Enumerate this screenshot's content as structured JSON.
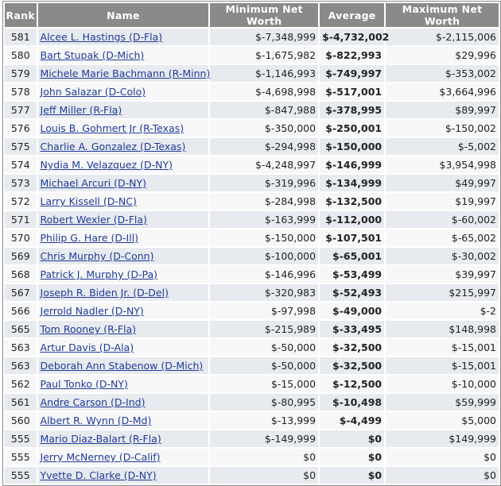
{
  "table": {
    "headers": {
      "rank": "Rank",
      "name": "Name",
      "min": "Minimum Net Worth",
      "avg": "Average",
      "max": "Maximum Net Worth"
    },
    "rows": [
      {
        "rank": "581",
        "name": "Alcee L. Hastings (D-Fla)",
        "min": "$-7,348,999",
        "avg": "$-4,732,002",
        "max": "$-2,115,006"
      },
      {
        "rank": "580",
        "name": "Bart Stupak (D-Mich)",
        "min": "$-1,675,982",
        "avg": "$-822,993",
        "max": "$29,996"
      },
      {
        "rank": "579",
        "name": "Michele Marie Bachmann (R-Minn)",
        "min": "$-1,146,993",
        "avg": "$-749,997",
        "max": "$-353,002"
      },
      {
        "rank": "578",
        "name": "John Salazar (D-Colo)",
        "min": "$-4,698,998",
        "avg": "$-517,001",
        "max": "$3,664,996"
      },
      {
        "rank": "577",
        "name": "Jeff Miller (R-Fla)",
        "min": "$-847,988",
        "avg": "$-378,995",
        "max": "$89,997"
      },
      {
        "rank": "576",
        "name": "Louis B. Gohmert Jr (R-Texas)",
        "min": "$-350,000",
        "avg": "$-250,001",
        "max": "$-150,002"
      },
      {
        "rank": "575",
        "name": "Charlie A. Gonzalez (D-Texas)",
        "min": "$-294,998",
        "avg": "$-150,000",
        "max": "$-5,002"
      },
      {
        "rank": "574",
        "name": "Nydia M. Velazquez (D-NY)",
        "min": "$-4,248,997",
        "avg": "$-146,999",
        "max": "$3,954,998"
      },
      {
        "rank": "573",
        "name": "Michael Arcuri (D-NY)",
        "min": "$-319,996",
        "avg": "$-134,999",
        "max": "$49,997"
      },
      {
        "rank": "572",
        "name": "Larry Kissell (D-NC)",
        "min": "$-284,998",
        "avg": "$-132,500",
        "max": "$19,997"
      },
      {
        "rank": "571",
        "name": "Robert Wexler (D-Fla)",
        "min": "$-163,999",
        "avg": "$-112,000",
        "max": "$-60,002"
      },
      {
        "rank": "570",
        "name": "Philip G. Hare (D-Ill)",
        "min": "$-150,000",
        "avg": "$-107,501",
        "max": "$-65,002"
      },
      {
        "rank": "569",
        "name": "Chris Murphy (D-Conn)",
        "min": "$-100,000",
        "avg": "$-65,001",
        "max": "$-30,002"
      },
      {
        "rank": "568",
        "name": "Patrick J. Murphy (D-Pa)",
        "min": "$-146,996",
        "avg": "$-53,499",
        "max": "$39,997"
      },
      {
        "rank": "567",
        "name": "Joseph R. Biden Jr. (D-Del)",
        "min": "$-320,983",
        "avg": "$-52,493",
        "max": "$215,997"
      },
      {
        "rank": "566",
        "name": "Jerrold Nadler (D-NY)",
        "min": "$-97,998",
        "avg": "$-49,000",
        "max": "$-2"
      },
      {
        "rank": "565",
        "name": "Tom Rooney (R-Fla)",
        "min": "$-215,989",
        "avg": "$-33,495",
        "max": "$148,998"
      },
      {
        "rank": "563",
        "name": "Artur Davis (D-Ala)",
        "min": "$-50,000",
        "avg": "$-32,500",
        "max": "$-15,001"
      },
      {
        "rank": "563",
        "name": "Deborah Ann Stabenow (D-Mich)",
        "min": "$-50,000",
        "avg": "$-32,500",
        "max": "$-15,001"
      },
      {
        "rank": "562",
        "name": "Paul Tonko (D-NY)",
        "min": "$-15,000",
        "avg": "$-12,500",
        "max": "$-10,000"
      },
      {
        "rank": "561",
        "name": "Andre Carson (D-Ind)",
        "min": "$-80,995",
        "avg": "$-10,498",
        "max": "$59,999"
      },
      {
        "rank": "560",
        "name": "Albert R. Wynn (D-Md)",
        "min": "$-13,999",
        "avg": "$-4,499",
        "max": "$5,000"
      },
      {
        "rank": "555",
        "name": "Mario Diaz-Balart (R-Fla)",
        "min": "$-149,999",
        "avg": "$0",
        "max": "$149,999"
      },
      {
        "rank": "555",
        "name": "Jerry McNerney (D-Calif)",
        "min": "$0",
        "avg": "$0",
        "max": "$0"
      },
      {
        "rank": "555",
        "name": "Yvette D. Clarke (D-NY)",
        "min": "$0",
        "avg": "$0",
        "max": "$0"
      }
    ]
  },
  "colors": {
    "header_bg": "#8a8a8a",
    "header_text": "#ffffff",
    "row_odd": "#e7eaee",
    "row_even": "#f7f7f8",
    "link": "#1f3b99"
  }
}
